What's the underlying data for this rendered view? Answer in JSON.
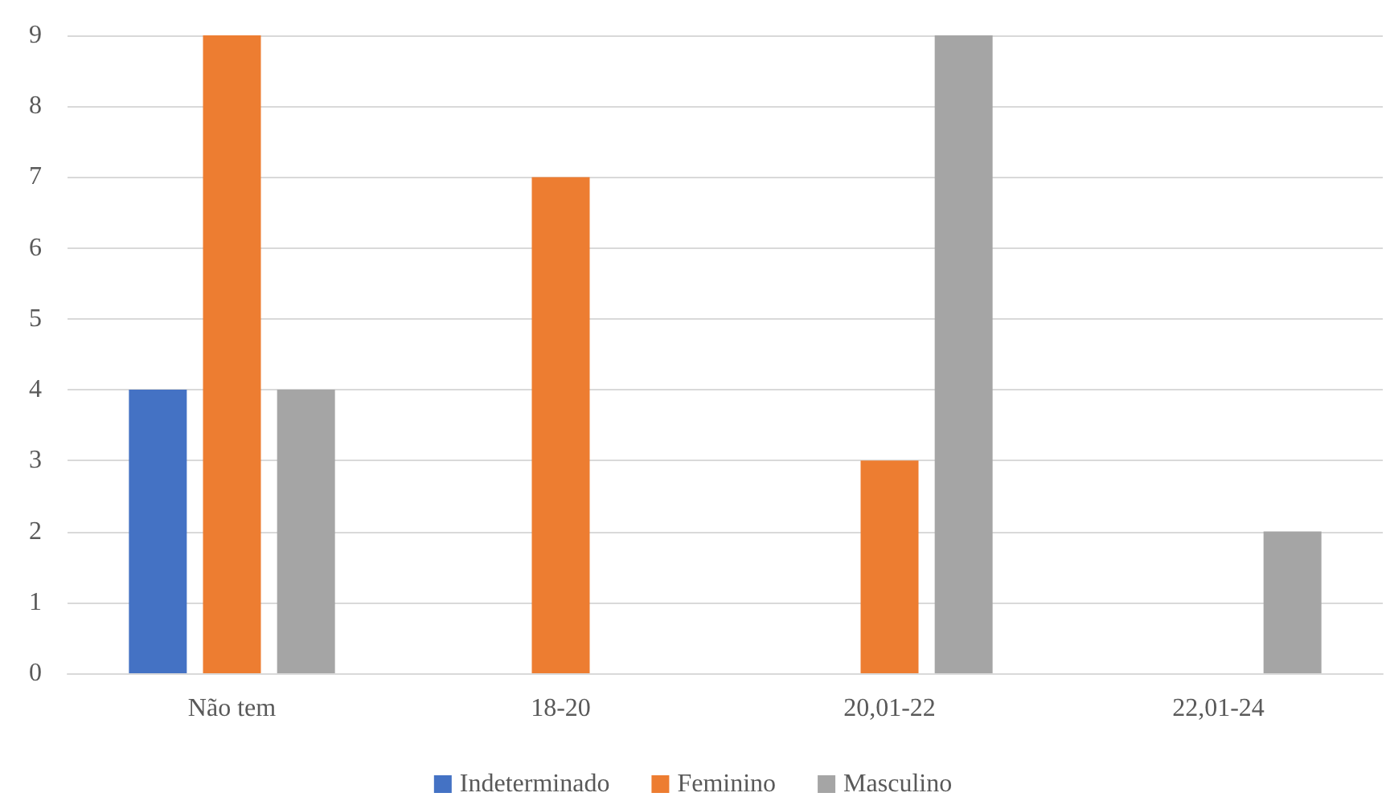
{
  "chart_data": {
    "type": "bar",
    "categories": [
      "Não tem",
      "18-20",
      "20,01-22",
      "22,01-24"
    ],
    "series": [
      {
        "name": "Indeterminado",
        "color": "#4472c4",
        "values": [
          4,
          null,
          null,
          null
        ]
      },
      {
        "name": "Feminino",
        "color": "#ed7d31",
        "values": [
          9,
          7,
          3,
          null
        ]
      },
      {
        "name": "Masculino",
        "color": "#a5a5a5",
        "values": [
          4,
          null,
          9,
          2
        ]
      }
    ],
    "ylim": [
      0,
      9
    ],
    "yticks": [
      0,
      1,
      2,
      3,
      4,
      5,
      6,
      7,
      8,
      9
    ],
    "grid": "y",
    "legend": "bottom"
  }
}
